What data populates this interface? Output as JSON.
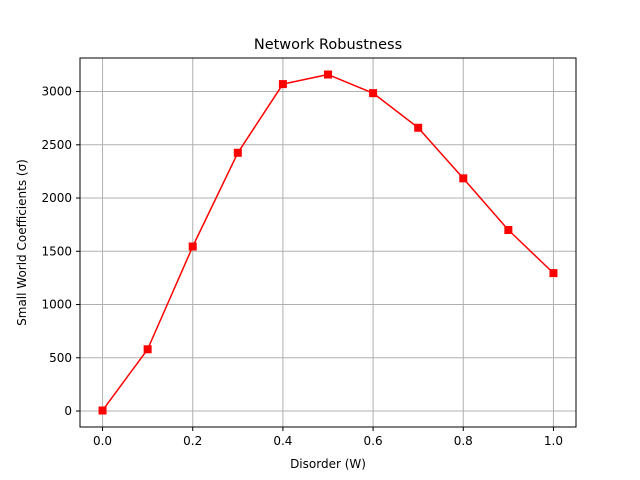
{
  "chart_data": {
    "type": "line",
    "title": "Network Robustness",
    "xlabel": "Disorder (W)",
    "ylabel": "Small World Coefficients (σ)",
    "x": [
      0.0,
      0.1,
      0.2,
      0.3,
      0.4,
      0.5,
      0.6,
      0.7,
      0.8,
      0.9,
      1.0
    ],
    "series": [
      {
        "values": [
          5,
          580,
          1545,
          2425,
          3070,
          3160,
          2985,
          2660,
          2185,
          1700,
          1295
        ],
        "color": "#ff0000",
        "marker": "square",
        "line_style": "solid"
      }
    ],
    "xlim": [
      -0.05,
      1.05
    ],
    "ylim": [
      -150,
      3315
    ],
    "xticks": [
      0.0,
      0.2,
      0.4,
      0.6,
      0.8,
      1.0
    ],
    "xtick_labels": [
      "0.0",
      "0.2",
      "0.4",
      "0.6",
      "0.8",
      "1.0"
    ],
    "yticks": [
      0,
      500,
      1000,
      1500,
      2000,
      2500,
      3000
    ],
    "ytick_labels": [
      "0",
      "500",
      "1000",
      "1500",
      "2000",
      "2500",
      "3000"
    ],
    "grid": true,
    "legend": "none"
  }
}
